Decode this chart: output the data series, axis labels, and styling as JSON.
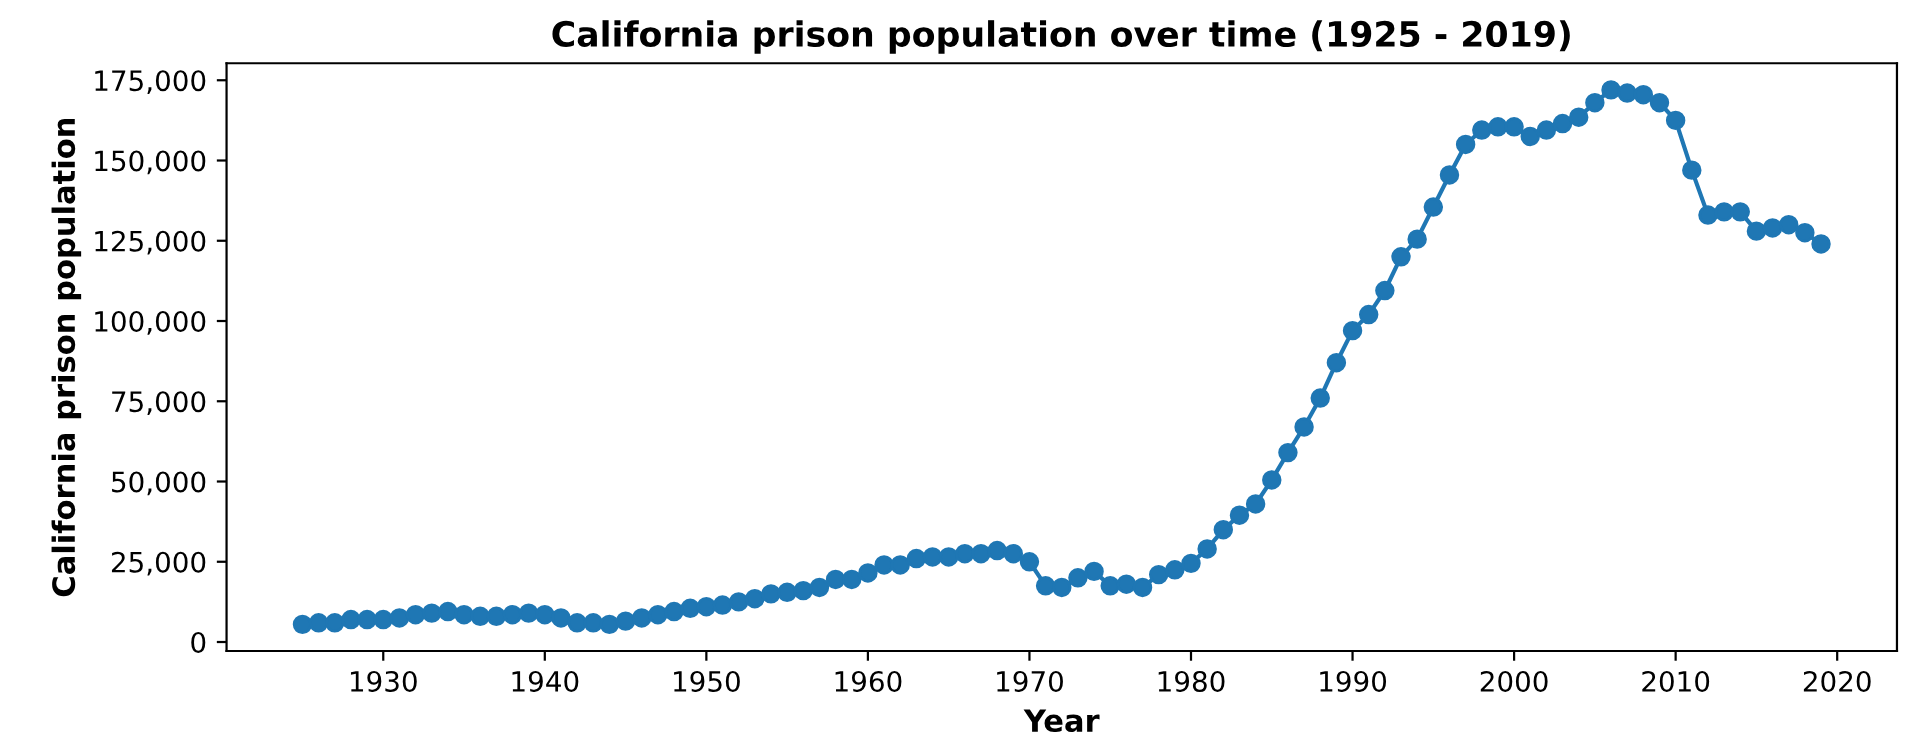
{
  "chart_data": {
    "type": "line",
    "title": "California prison population over time (1925 - 2019)",
    "xlabel": "Year",
    "ylabel": "California prison population",
    "x": [
      1925,
      1926,
      1927,
      1928,
      1929,
      1930,
      1931,
      1932,
      1933,
      1934,
      1935,
      1936,
      1937,
      1938,
      1939,
      1940,
      1941,
      1942,
      1943,
      1944,
      1945,
      1946,
      1947,
      1948,
      1949,
      1950,
      1951,
      1952,
      1953,
      1954,
      1955,
      1956,
      1957,
      1958,
      1959,
      1960,
      1961,
      1962,
      1963,
      1964,
      1965,
      1966,
      1967,
      1968,
      1969,
      1970,
      1971,
      1972,
      1973,
      1974,
      1975,
      1976,
      1977,
      1978,
      1979,
      1980,
      1981,
      1982,
      1983,
      1984,
      1985,
      1986,
      1987,
      1988,
      1989,
      1990,
      1991,
      1992,
      1993,
      1994,
      1995,
      1996,
      1997,
      1998,
      1999,
      2000,
      2001,
      2002,
      2003,
      2004,
      2005,
      2006,
      2007,
      2008,
      2009,
      2010,
      2011,
      2012,
      2013,
      2014,
      2015,
      2016,
      2017,
      2018,
      2019
    ],
    "series": [
      {
        "color": "#1f77b4",
        "values": [
          5500,
          6000,
          6000,
          7000,
          7000,
          7000,
          7500,
          8500,
          9000,
          9500,
          8500,
          8000,
          8000,
          8500,
          9000,
          8500,
          7500,
          6000,
          6000,
          5500,
          6500,
          7500,
          8500,
          9500,
          10500,
          11000,
          11500,
          12500,
          13500,
          15000,
          15500,
          16000,
          17000,
          19500,
          19500,
          21500,
          24000,
          24000,
          26000,
          26500,
          26500,
          27500,
          27500,
          28500,
          27500,
          25000,
          17500,
          17000,
          20000,
          22000,
          17500,
          18000,
          17000,
          21000,
          22500,
          24500,
          29000,
          35000,
          39500,
          43000,
          50500,
          59000,
          67000,
          76000,
          87000,
          97000,
          102000,
          109500,
          120000,
          125500,
          135500,
          145500,
          155000,
          159500,
          160500,
          160500,
          157500,
          159500,
          161500,
          163500,
          168000,
          172000,
          171000,
          170500,
          168000,
          162500,
          147000,
          133000,
          134000,
          134000,
          128000,
          129000,
          130000,
          127500,
          124000
        ]
      }
    ],
    "marker": "circle",
    "line_style": "solid",
    "grid": false,
    "legend": false,
    "xlim": [
      1920.3,
      2023.7
    ],
    "ylim": [
      -2800,
      180300
    ],
    "xticks": [
      1930,
      1940,
      1950,
      1960,
      1970,
      1980,
      1990,
      2000,
      2010,
      2020
    ],
    "yticks": [
      {
        "value": 0,
        "label": "0"
      },
      {
        "value": 25000,
        "label": "25,000"
      },
      {
        "value": 50000,
        "label": "50,000"
      },
      {
        "value": 75000,
        "label": "75,000"
      },
      {
        "value": 100000,
        "label": "100,000"
      },
      {
        "value": 125000,
        "label": "125,000"
      },
      {
        "value": 150000,
        "label": "150,000"
      },
      {
        "value": 175000,
        "label": "175,000"
      }
    ]
  }
}
